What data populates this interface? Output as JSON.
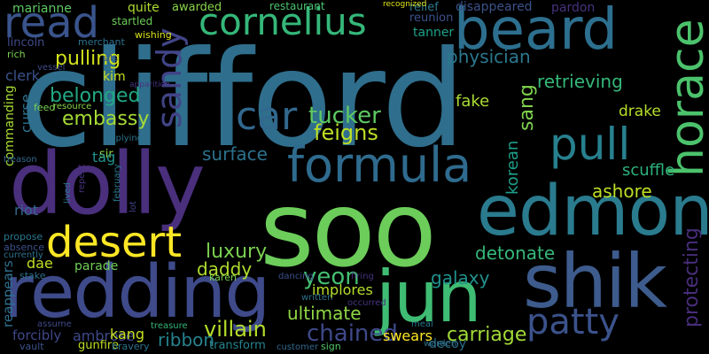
{
  "words": [
    {
      "text": "clifford",
      "color": "#2f6e8c"
    },
    {
      "text": "soo",
      "color": "#6ccd5a"
    },
    {
      "text": "dolly",
      "color": "#4a2f7d"
    },
    {
      "text": "redding",
      "color": "#3e4a89"
    },
    {
      "text": "edmond",
      "color": "#2a7b8e"
    },
    {
      "text": "shik",
      "color": "#3d5b8c"
    },
    {
      "text": "jun",
      "color": "#3fbc73"
    },
    {
      "text": "beard",
      "color": "#2d6f8e"
    },
    {
      "text": "formula",
      "color": "#2f6b8e"
    },
    {
      "text": "horace",
      "color": "#4cc26c"
    },
    {
      "text": "desert",
      "color": "#fde725"
    },
    {
      "text": "read",
      "color": "#3a548c"
    },
    {
      "text": "cornelius",
      "color": "#35b779"
    },
    {
      "text": "pull",
      "color": "#27808e"
    },
    {
      "text": "sandy",
      "color": "#414487"
    },
    {
      "text": "patty",
      "color": "#3b528b"
    },
    {
      "text": "car",
      "color": "#31688e"
    },
    {
      "text": "yeon",
      "color": "#44bf70"
    },
    {
      "text": "luxury",
      "color": "#7ad151"
    },
    {
      "text": "chained",
      "color": "#3e4989"
    },
    {
      "text": "tucker",
      "color": "#5ec962"
    },
    {
      "text": "feigns",
      "color": "#bddf26"
    },
    {
      "text": "villain",
      "color": "#b5de2b"
    },
    {
      "text": "carriage",
      "color": "#a2da37"
    },
    {
      "text": "belonged",
      "color": "#22a884"
    },
    {
      "text": "pulling",
      "color": "#d2e21b"
    },
    {
      "text": "embassy",
      "color": "#a5db36"
    },
    {
      "text": "physician",
      "color": "#2a788e"
    },
    {
      "text": "retrieving",
      "color": "#35b779"
    },
    {
      "text": "surface",
      "color": "#2c728e"
    },
    {
      "text": "ultimate",
      "color": "#8fd744"
    },
    {
      "text": "ribbon",
      "color": "#26828e"
    },
    {
      "text": "daddy",
      "color": "#b0dd2f"
    },
    {
      "text": "galaxy",
      "color": "#21918c"
    },
    {
      "text": "detonate",
      "color": "#35b779"
    },
    {
      "text": "protecting",
      "color": "#472d7b"
    },
    {
      "text": "korean",
      "color": "#1f9e89"
    },
    {
      "text": "sang",
      "color": "#7fd34e"
    },
    {
      "text": "ashore",
      "color": "#bddf26"
    },
    {
      "text": "scuffle",
      "color": "#2db27d"
    },
    {
      "text": "fake",
      "color": "#a8db34"
    },
    {
      "text": "drake",
      "color": "#b5de2b"
    },
    {
      "text": "pow",
      "color": "#95d840"
    },
    {
      "text": "marianne",
      "color": "#5ec962"
    },
    {
      "text": "quite",
      "color": "#addc30"
    },
    {
      "text": "awarded",
      "color": "#86d549"
    },
    {
      "text": "restaurant",
      "color": "#4ac16d"
    },
    {
      "text": "disappeared",
      "color": "#3b528b"
    },
    {
      "text": "pardon",
      "color": "#46337f"
    },
    {
      "text": "relief",
      "color": "#2a788e"
    },
    {
      "text": "tanner",
      "color": "#1fa188"
    },
    {
      "text": "reunion",
      "color": "#3b528b"
    },
    {
      "text": "startled",
      "color": "#6ccd5a"
    },
    {
      "text": "wishing",
      "color": "#d8e219"
    },
    {
      "text": "merchant",
      "color": "#2c728e"
    },
    {
      "text": "lincoln",
      "color": "#3e4a89"
    },
    {
      "text": "rich",
      "color": "#7ad151"
    },
    {
      "text": "clerk",
      "color": "#3b528b"
    },
    {
      "text": "kim",
      "color": "#cae11f"
    },
    {
      "text": "annoyed",
      "color": "#46327e"
    },
    {
      "text": "pirate",
      "color": "#f1e51d"
    },
    {
      "text": "mate",
      "color": "#bddf26"
    },
    {
      "text": "noticing",
      "color": "#c0df25"
    },
    {
      "text": "hat",
      "color": "#e2e418"
    },
    {
      "text": "bottom",
      "color": "#90d743"
    },
    {
      "text": "value",
      "color": "#84d44b"
    },
    {
      "text": "obtains",
      "color": "#b8de29"
    },
    {
      "text": "bodyguard",
      "color": "#93d741"
    },
    {
      "text": "underwater",
      "color": "#d5e21a"
    },
    {
      "text": "militia",
      "color": "#25ab82"
    },
    {
      "text": "underworld",
      "color": "#22a785"
    },
    {
      "text": "slaughtered",
      "color": "#29798e"
    },
    {
      "text": "reduced",
      "color": "#a0da39"
    },
    {
      "text": "motorcycle",
      "color": "#addc30"
    },
    {
      "text": "riot",
      "color": "#31688e"
    },
    {
      "text": "dae",
      "color": "#c2df23"
    },
    {
      "text": "parade",
      "color": "#70cf57"
    },
    {
      "text": "beach",
      "color": "#23898e"
    },
    {
      "text": "jin",
      "color": "#8bd646"
    },
    {
      "text": "excited",
      "color": "#77d153"
    },
    {
      "text": "runner",
      "color": "#98d83e"
    },
    {
      "text": "garden",
      "color": "#bddf26"
    },
    {
      "text": "unsure",
      "color": "#7fd34e"
    },
    {
      "text": "townsfolk",
      "color": "#93d741"
    },
    {
      "text": "overpowers",
      "color": "#9bd93c"
    },
    {
      "text": "smell",
      "color": "#5ec962"
    },
    {
      "text": "encountered",
      "color": "#2c728e"
    },
    {
      "text": "decoy",
      "color": "#fde725"
    },
    {
      "text": "swears",
      "color": "#c8e020"
    },
    {
      "text": "kang",
      "color": "#3e4989"
    },
    {
      "text": "ambrose",
      "color": "#2d708e"
    },
    {
      "text": "reappears",
      "color": "#3f4788"
    },
    {
      "text": "forcibly",
      "color": "#b5de2b"
    },
    {
      "text": "implores",
      "color": "#95d840"
    },
    {
      "text": "transform",
      "color": "#25848e"
    },
    {
      "text": "curse",
      "color": "#2c728e"
    },
    {
      "text": "commanding",
      "color": "#a8db34"
    },
    {
      "text": "feed",
      "color": "#7ad151"
    },
    {
      "text": "resource",
      "color": "#86d549"
    },
    {
      "text": "woo",
      "color": "#7ad151"
    },
    {
      "text": "slow",
      "color": "#35b779"
    },
    {
      "text": "page",
      "color": "#27808e"
    },
    {
      "text": "float",
      "color": "#22a785"
    },
    {
      "text": "confirm",
      "color": "#e5e419"
    },
    {
      "text": "tricked",
      "color": "#31688e"
    },
    {
      "text": "education",
      "color": "#20928c"
    },
    {
      "text": "understand",
      "color": "#26828e"
    },
    {
      "text": "spent",
      "color": "#46327e"
    },
    {
      "text": "sacrifice",
      "color": "#3b528b"
    },
    {
      "text": "standoff",
      "color": "#2a788e"
    },
    {
      "text": "trek",
      "color": "#52c569"
    },
    {
      "text": "judy",
      "color": "#4ac16d"
    },
    {
      "text": "fast",
      "color": "#b5de2b"
    },
    {
      "text": "refusing",
      "color": "#31688e"
    },
    {
      "text": "scale",
      "color": "#2d708e"
    },
    {
      "text": "resume",
      "color": "#3b528b"
    },
    {
      "text": "text",
      "color": "#2c728e"
    },
    {
      "text": "december",
      "color": "#3e4a89"
    },
    {
      "text": "implying",
      "color": "#31688e"
    },
    {
      "text": "sir",
      "color": "#2c728e"
    },
    {
      "text": "tag",
      "color": "#8fd744"
    },
    {
      "text": "sub",
      "color": "#21918c"
    },
    {
      "text": "owes",
      "color": "#22a884"
    },
    {
      "text": "bartender",
      "color": "#a0da39"
    },
    {
      "text": "magical",
      "color": "#b0dd2f"
    },
    {
      "text": "joint",
      "color": "#46337f"
    },
    {
      "text": "digging",
      "color": "#453581"
    },
    {
      "text": "beck",
      "color": "#2c728e"
    },
    {
      "text": "fill",
      "color": "#29798e"
    },
    {
      "text": "food",
      "color": "#46327e"
    },
    {
      "text": "lunch",
      "color": "#9bd93c"
    },
    {
      "text": "bound",
      "color": "#a8db34"
    },
    {
      "text": "emerge",
      "color": "#c2df23"
    },
    {
      "text": "penny",
      "color": "#35b779"
    },
    {
      "text": "implied",
      "color": "#2c728e"
    },
    {
      "text": "agreeing",
      "color": "#31688e"
    },
    {
      "text": "greeted",
      "color": "#46327e"
    },
    {
      "text": "firing",
      "color": "#22a785"
    },
    {
      "text": "ensuing",
      "color": "#2a788e"
    },
    {
      "text": "propose",
      "color": "#3b528b"
    },
    {
      "text": "absence",
      "color": "#2c728e"
    },
    {
      "text": "currently",
      "color": "#2d708e"
    },
    {
      "text": "stake",
      "color": "#3e4a89"
    },
    {
      "text": "assume",
      "color": "#3b528b"
    },
    {
      "text": "vault",
      "color": "#bddf26"
    },
    {
      "text": "gunfire",
      "color": "#2c728e"
    },
    {
      "text": "bravery",
      "color": "#35b779"
    },
    {
      "text": "treasure",
      "color": "#31688e"
    },
    {
      "text": "customer",
      "color": "#52c569"
    },
    {
      "text": "sign",
      "color": "#2c728e"
    },
    {
      "text": "warden",
      "color": "#2a788e"
    },
    {
      "text": "meal",
      "color": "#46337f"
    },
    {
      "text": "occurred",
      "color": "#2c728e"
    },
    {
      "text": "written",
      "color": "#7ad151"
    },
    {
      "text": "karen",
      "color": "#3b528b"
    },
    {
      "text": "dancing",
      "color": "#3e4a89"
    },
    {
      "text": "drowns",
      "color": "#31688e"
    },
    {
      "text": "declared",
      "color": "#2c728e"
    },
    {
      "text": "stole",
      "color": "#bddf26"
    },
    {
      "text": "woody",
      "color": "#8fd744"
    },
    {
      "text": "document",
      "color": "#2c728e"
    },
    {
      "text": "considered",
      "color": "#414487"
    },
    {
      "text": "otherwise",
      "color": "#2a788e"
    },
    {
      "text": "elaborate",
      "color": "#2c728e"
    },
    {
      "text": "lot",
      "color": "#46327e"
    },
    {
      "text": "february",
      "color": "#472d7b"
    },
    {
      "text": "lived",
      "color": "#3b528b"
    },
    {
      "text": "repeat",
      "color": "#2c728e"
    },
    {
      "text": "albert",
      "color": "#46327e"
    },
    {
      "text": "piece",
      "color": "#2c728e"
    },
    {
      "text": "creates",
      "color": "#3b528b"
    },
    {
      "text": "emotional",
      "color": "#3e4a89"
    },
    {
      "text": "shoulder",
      "color": "#46327e"
    },
    {
      "text": "learned",
      "color": "#31688e"
    },
    {
      "text": "organized",
      "color": "#e2e418"
    },
    {
      "text": "patrick",
      "color": "#46327e"
    },
    {
      "text": "sits",
      "color": "#2a788e"
    },
    {
      "text": "vessel",
      "color": "#46327e"
    },
    {
      "text": "apparition",
      "color": "#3e4a89"
    },
    {
      "text": "treason",
      "color": "#2c728e"
    },
    {
      "text": "recognized",
      "color": "#3b528b"
    },
    {
      "text": "inviting",
      "color": "#46327e"
    },
    {
      "text": "count",
      "color": "#31688e"
    },
    {
      "text": "vast",
      "color": "#2a788e"
    },
    {
      "text": "commission",
      "color": "#2c728e"
    },
    {
      "text": "innocent",
      "color": "#3b528b"
    },
    {
      "text": "newfound",
      "color": "#2a788e"
    },
    {
      "text": "bleeding",
      "color": "#7ad151"
    },
    {
      "text": "knocking",
      "color": "#46327e"
    },
    {
      "text": "animated",
      "color": "#22a785"
    },
    {
      "text": "tension",
      "color": "#2c728e"
    },
    {
      "text": "advanced",
      "color": "#3e4a89"
    },
    {
      "text": "representative",
      "color": "#35b779"
    },
    {
      "text": "firefight",
      "color": "#2c728e"
    },
    {
      "text": "shape",
      "color": "#46327e"
    },
    {
      "text": "border",
      "color": "#2a788e"
    },
    {
      "text": "cook",
      "color": "#46327e"
    },
    {
      "text": "pretending",
      "color": "#21918c"
    }
  ]
}
